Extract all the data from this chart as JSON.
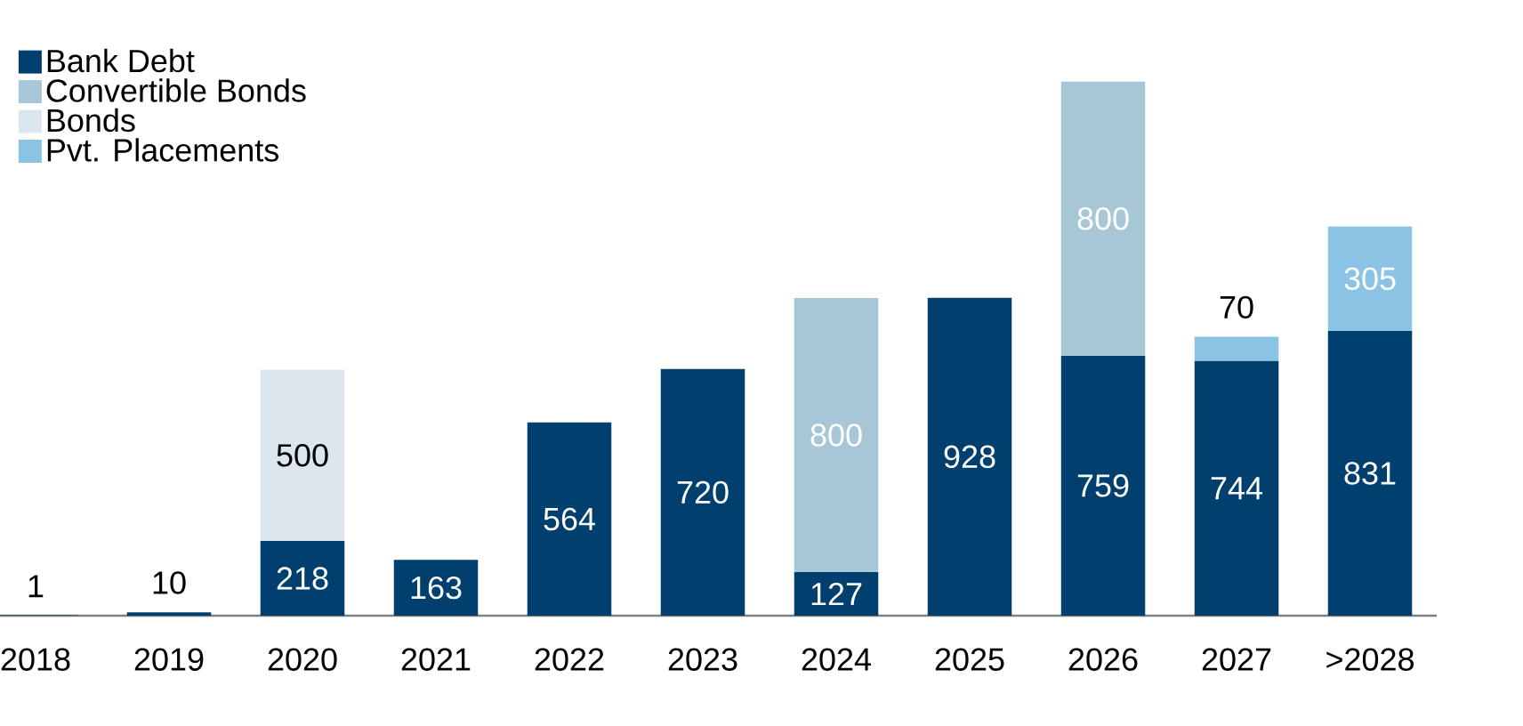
{
  "chart_data": {
    "type": "bar",
    "stacked": true,
    "data_labels": true,
    "legend": "top left",
    "categories": [
      "2018",
      "2019",
      "2020",
      "2021",
      "2022",
      "2023",
      "2024",
      "2025",
      "2026",
      "2027",
      ">2028"
    ],
    "series": [
      {
        "name": "Bank Debt",
        "color": "#003f6e",
        "values": [
          1,
          10,
          218,
          163,
          564,
          720,
          127,
          928,
          759,
          744,
          831
        ]
      },
      {
        "name": "Convertible Bonds",
        "color": "#a7c6d6",
        "values": [
          null,
          null,
          null,
          null,
          null,
          null,
          800,
          null,
          800,
          null,
          null
        ]
      },
      {
        "name": "Bonds",
        "color": "#dce6ee",
        "values": [
          null,
          null,
          500,
          null,
          null,
          null,
          null,
          null,
          null,
          null,
          null
        ]
      },
      {
        "name": "Pvt. Placements",
        "color": "#8bc3e5",
        "values": [
          null,
          null,
          null,
          null,
          null,
          null,
          null,
          null,
          null,
          70,
          305
        ]
      }
    ]
  }
}
